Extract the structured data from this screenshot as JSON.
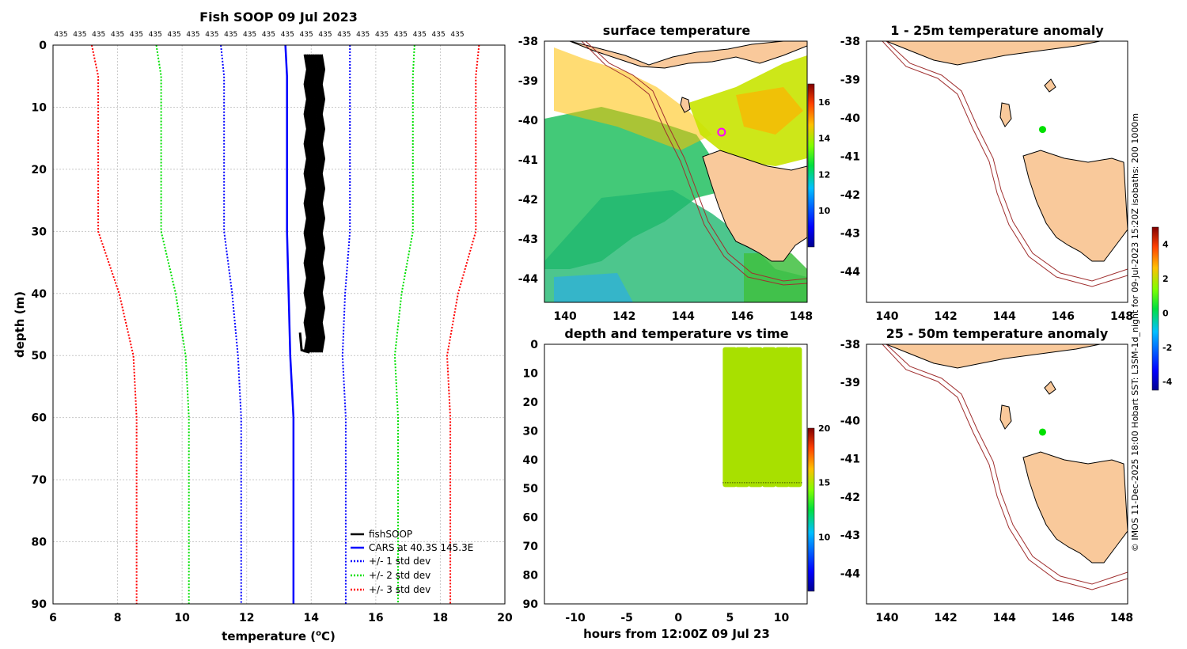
{
  "profile": {
    "title": "Fish SOOP 09 Jul 2023",
    "top_label_value": "435",
    "top_label_count": 22,
    "xlabel": "temperature (",
    "xlabel_sup": "o",
    "xlabel_end": "C)",
    "ylabel": "depth (m)",
    "legend": [
      "fishSOOP",
      "CARS at 40.3S 145.3E",
      "+/- 1 std dev",
      "+/- 2 std dev",
      "+/- 3 std dev"
    ]
  },
  "sst_map": {
    "title": "surface temperature"
  },
  "time_panel": {
    "title": "depth and temperature vs time",
    "xlabel": "hours from 12:00Z 09 Jul 23"
  },
  "anom1": {
    "title": "1 - 25m temperature anomaly"
  },
  "anom2": {
    "title": "25 - 50m temperature anomaly"
  },
  "credit": "© IMOS 11-Dec-2025 18:00 Hobart SST: L3SM-1d_night for 09-Jul-2023 15:20Z isobaths: 200  1000m",
  "chart_data": [
    {
      "type": "line",
      "title": "Fish SOOP 09 Jul 2023",
      "xlabel": "temperature (oC)",
      "ylabel": "depth (m)",
      "xlim": [
        6,
        20
      ],
      "ylim": [
        90,
        0
      ],
      "xticks": [
        6,
        8,
        10,
        12,
        14,
        16,
        18,
        20
      ],
      "yticks": [
        0,
        10,
        20,
        30,
        40,
        50,
        60,
        70,
        80,
        90
      ],
      "depth": [
        0,
        5,
        30,
        40,
        50,
        60,
        90
      ],
      "cars_mean": [
        13.2,
        13.25,
        13.25,
        13.3,
        13.35,
        13.45,
        13.45
      ],
      "series": [
        {
          "name": "fishSOOP",
          "color": "#000000",
          "range_temp": [
            13.8,
            14.45
          ],
          "range_depth": [
            1.5,
            49.5
          ]
        },
        {
          "name": "CARS at 40.3S 145.3E",
          "color": "#0000ff",
          "std_mult": 0
        },
        {
          "name": "+/- 1 std dev",
          "color": "#0000ff",
          "std_mult": 1
        },
        {
          "name": "+/- 2 std dev",
          "color": "#00e000",
          "std_mult": 2
        },
        {
          "name": "+/- 3 std dev",
          "color": "#ff0000",
          "std_mult": 3
        }
      ],
      "std": [
        2.0,
        1.95,
        1.95,
        1.75,
        1.62,
        1.62,
        1.62
      ]
    },
    {
      "type": "heatmap",
      "title": "surface temperature",
      "xlim": [
        139.3,
        148.2
      ],
      "ylim": [
        -44.6,
        -38
      ],
      "xticks": [
        140,
        142,
        144,
        146,
        148
      ],
      "yticks": [
        -38,
        -39,
        -40,
        -41,
        -42,
        -43,
        -44
      ],
      "colorbar": {
        "ticks": [
          10,
          12,
          14,
          16
        ],
        "range": [
          8,
          17
        ]
      },
      "marker": {
        "lon": 145.3,
        "lat": -40.3
      }
    },
    {
      "type": "scatter",
      "title": "depth and temperature vs time",
      "xlabel": "hours from 12:00Z 09 Jul 23",
      "xlim": [
        -13,
        12.5
      ],
      "ylim": [
        90,
        0
      ],
      "xticks": [
        -10,
        -5,
        0,
        5,
        10
      ],
      "yticks": [
        0,
        10,
        20,
        30,
        40,
        50,
        60,
        70,
        80,
        90
      ],
      "casts": [
        5,
        6.2,
        7.5,
        8.8,
        10.1,
        11.3
      ],
      "colorbar": {
        "ticks": [
          10,
          15,
          20
        ],
        "range": [
          5,
          20
        ]
      }
    },
    {
      "type": "heatmap",
      "title": "1 - 25m temperature anomaly",
      "xlim": [
        139.3,
        148.2
      ],
      "ylim": [
        -44.8,
        -38
      ],
      "xticks": [
        140,
        142,
        144,
        146,
        148
      ],
      "yticks": [
        -38,
        -39,
        -40,
        -41,
        -42,
        -43,
        -44
      ],
      "point": {
        "lon": 145.3,
        "lat": -40.3,
        "anomaly": 0.2
      }
    },
    {
      "type": "heatmap",
      "title": "25 - 50m temperature anomaly",
      "xlim": [
        139.3,
        148.2
      ],
      "ylim": [
        -44.8,
        -38
      ],
      "xticks": [
        140,
        142,
        144,
        146,
        148
      ],
      "yticks": [
        -38,
        -39,
        -40,
        -41,
        -42,
        -43,
        -44
      ],
      "point": {
        "lon": 145.3,
        "lat": -40.3,
        "anomaly": 0.2
      },
      "colorbar": {
        "ticks": [
          -4,
          -2,
          0,
          2,
          4
        ],
        "range": [
          -4.5,
          5
        ]
      }
    }
  ]
}
